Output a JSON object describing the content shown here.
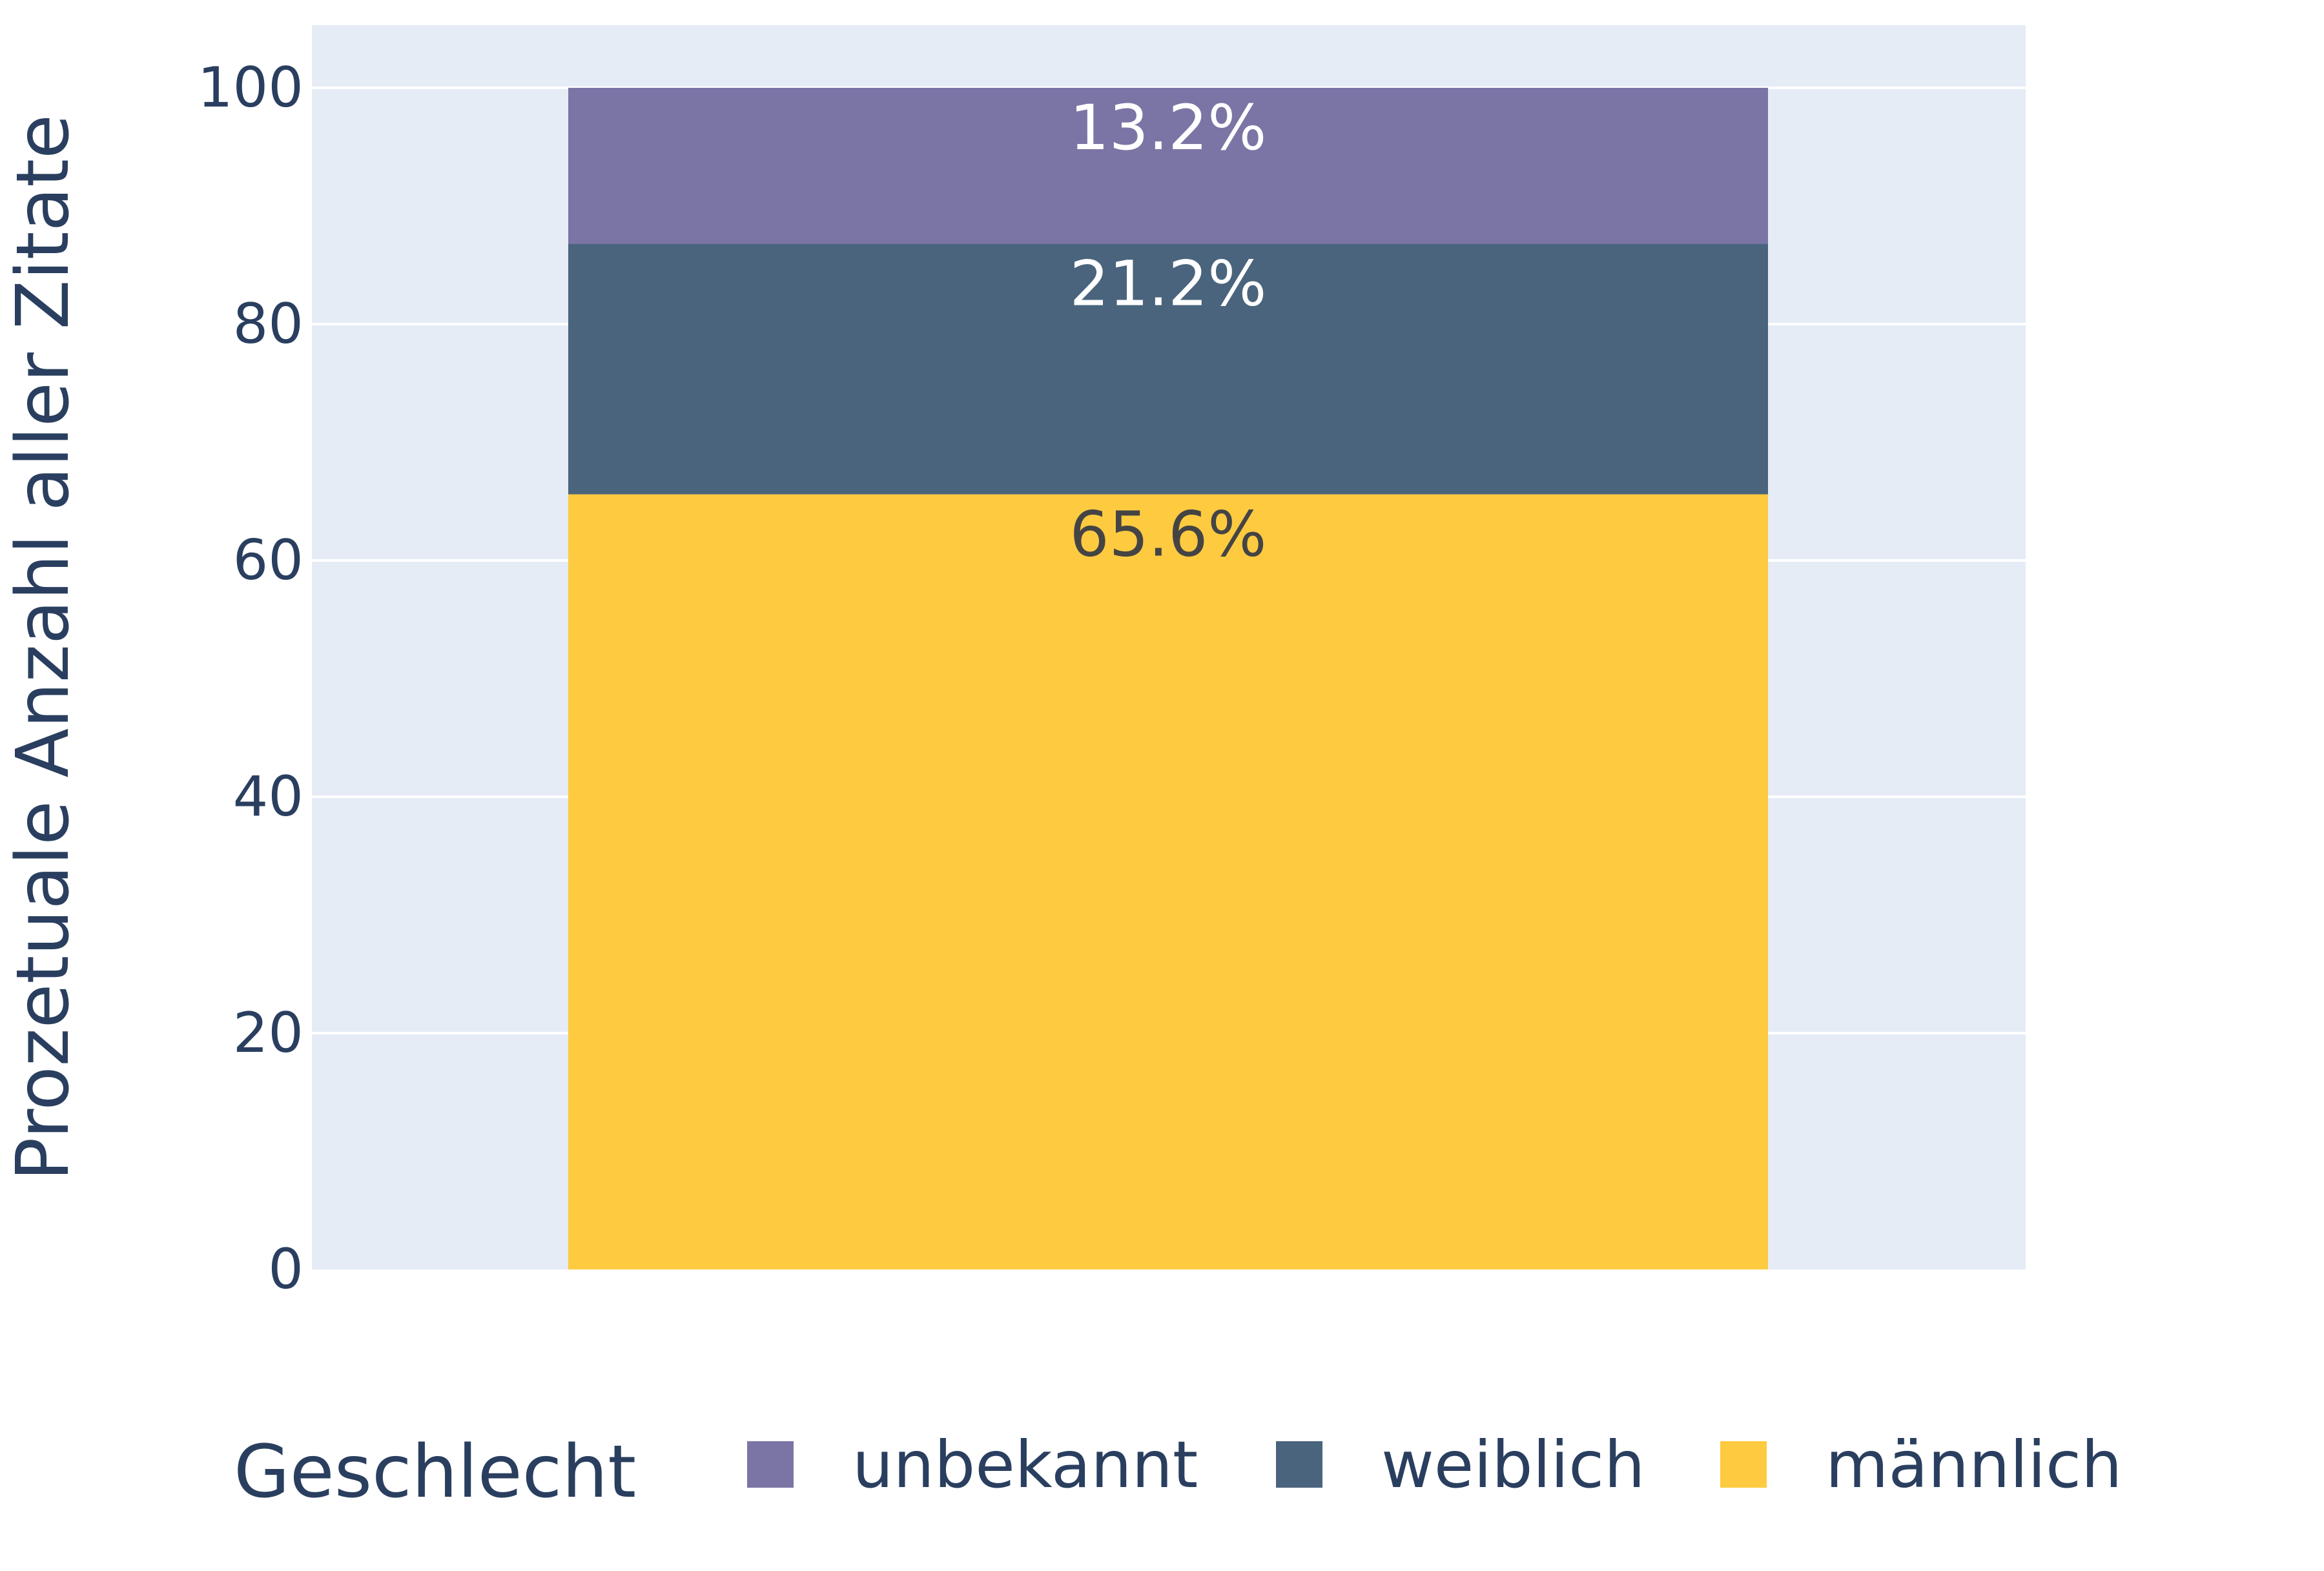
{
  "chart_data": {
    "type": "bar",
    "stacked": true,
    "categories": [
      ""
    ],
    "series": [
      {
        "name": "männlich",
        "values": [
          65.6
        ],
        "color": "#fdca40",
        "label": "65.6%",
        "label_color": "#444444"
      },
      {
        "name": "weiblich",
        "values": [
          21.2
        ],
        "color": "#4a647d",
        "label": "21.2%",
        "label_color": "#ffffff"
      },
      {
        "name": "unbekannt",
        "values": [
          13.2
        ],
        "color": "#7b75a6",
        "label": "13.2%",
        "label_color": "#ffffff"
      }
    ],
    "title": "",
    "xlabel": "",
    "ylabel": "Prozetuale Anzahl aller Zitate",
    "ylim": [
      0,
      105.3
    ],
    "yticks": [
      0,
      20,
      40,
      60,
      80,
      100
    ],
    "ytick_labels": [
      "0",
      "20",
      "40",
      "60",
      "80",
      "100"
    ],
    "grid": true,
    "legend": {
      "title": "Geschlecht",
      "placement": "bottom",
      "entries": [
        "unbekannt",
        "weiblich",
        "männlich"
      ]
    },
    "colors": {
      "plot_background": "#e5ecf6",
      "grid": "#ffffff",
      "text": "#2a3f5f"
    }
  }
}
